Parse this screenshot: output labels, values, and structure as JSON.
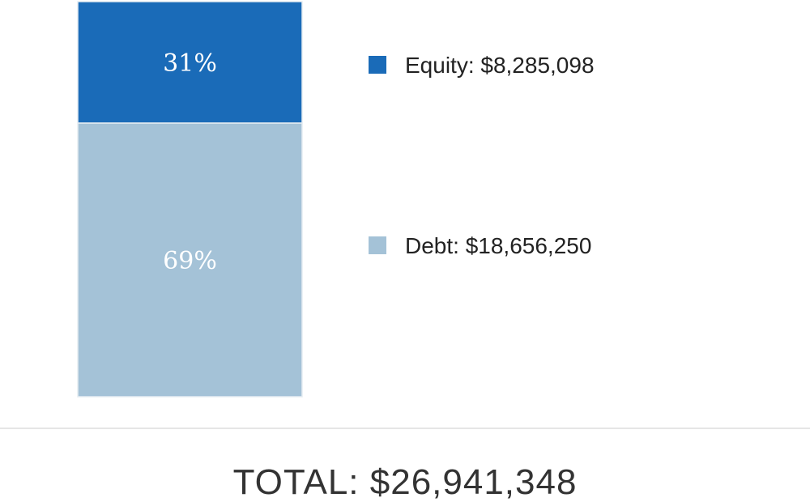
{
  "chart_data": {
    "type": "bar",
    "stacked": true,
    "orientation": "vertical",
    "series": [
      {
        "name": "Equity",
        "value": 8285098,
        "percent": 31,
        "percent_label": "31%",
        "legend_label": "Equity: $8,285,098",
        "color": "#1a6bb8"
      },
      {
        "name": "Debt",
        "value": 18656250,
        "percent": 69,
        "percent_label": "69%",
        "legend_label": "Debt: $18,656,250",
        "color": "#a4c2d7"
      }
    ],
    "total": 26941348,
    "total_label": "TOTAL: $26,941,348",
    "legend_placement": "right",
    "grid": false
  },
  "colors": {
    "segment_border": "#e6edf2",
    "divider": "#cccccc",
    "legend_text": "#222222",
    "total_text": "#333333",
    "percent_text": "#ffffff"
  }
}
